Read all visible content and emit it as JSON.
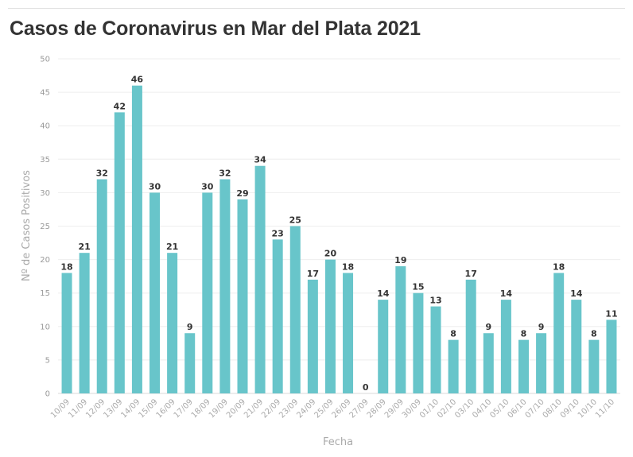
{
  "chart_data": {
    "type": "bar",
    "title": "Casos de Coronavirus en Mar del Plata 2021",
    "xlabel": "Fecha",
    "ylabel": "Nº de Casos Positivos",
    "ylim": [
      0,
      50
    ],
    "yticks": [
      0,
      5,
      10,
      15,
      20,
      25,
      30,
      35,
      40,
      45,
      50
    ],
    "grid": true,
    "bar_color": "#68c5ca",
    "categories": [
      "10/09",
      "11/09",
      "12/09",
      "13/09",
      "14/09",
      "15/09",
      "16/09",
      "17/09",
      "18/09",
      "19/09",
      "20/09",
      "21/09",
      "22/09",
      "23/09",
      "24/09",
      "25/09",
      "26/09",
      "27/09",
      "28/09",
      "29/09",
      "30/09",
      "01/10",
      "02/10",
      "03/10",
      "04/10",
      "05/10",
      "06/10",
      "07/10",
      "08/10",
      "09/10",
      "10/10",
      "11/10"
    ],
    "values": [
      18,
      21,
      32,
      42,
      46,
      30,
      21,
      9,
      30,
      32,
      29,
      34,
      23,
      25,
      17,
      20,
      18,
      0,
      14,
      19,
      15,
      13,
      8,
      17,
      9,
      14,
      8,
      9,
      18,
      14,
      8,
      11
    ]
  }
}
